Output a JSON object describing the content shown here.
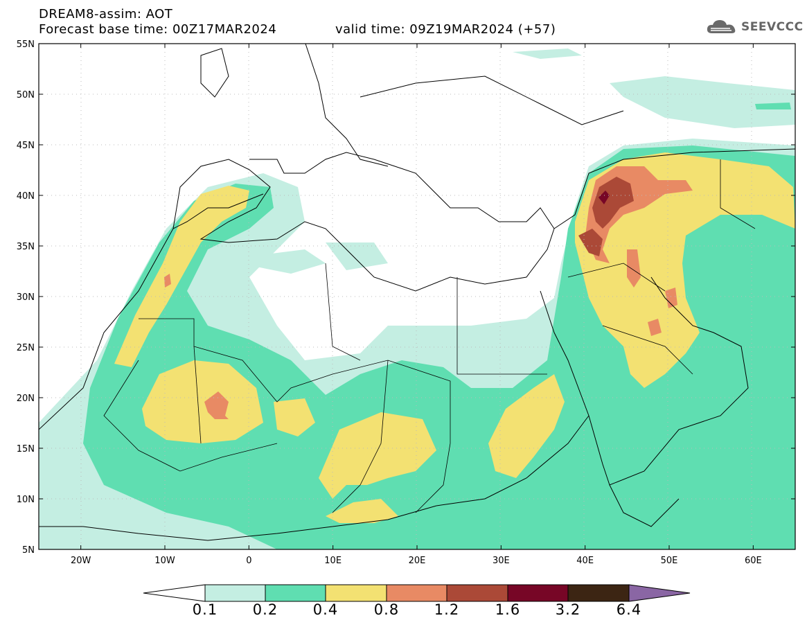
{
  "header": {
    "title": "DREAM8-assim: AOT",
    "base_time": "Forecast base time: 00Z17MAR2024",
    "valid_time": "valid time: 09Z19MAR2024 (+57)"
  },
  "logo": {
    "text": "SEEVCCC",
    "icon": "cloud-icon"
  },
  "map": {
    "lon_ticks": [
      "20W",
      "10W",
      "0",
      "10E",
      "20E",
      "30E",
      "40E",
      "50E",
      "60E"
    ],
    "lat_ticks": [
      "55N",
      "50N",
      "45N",
      "40N",
      "35N",
      "30N",
      "25N",
      "20N",
      "15N",
      "10N",
      "5N"
    ],
    "lon_range": [
      -25,
      65
    ],
    "lat_range": [
      5,
      55
    ]
  },
  "colorbar": {
    "levels": [
      "0.1",
      "0.2",
      "0.4",
      "0.8",
      "1.2",
      "1.6",
      "3.2",
      "6.4"
    ],
    "colors": [
      "#ffffff",
      "#c4eee2",
      "#5fdeb1",
      "#f3e172",
      "#e88a64",
      "#ab4937",
      "#770626",
      "#3c2513",
      "#8a66a4"
    ]
  }
}
